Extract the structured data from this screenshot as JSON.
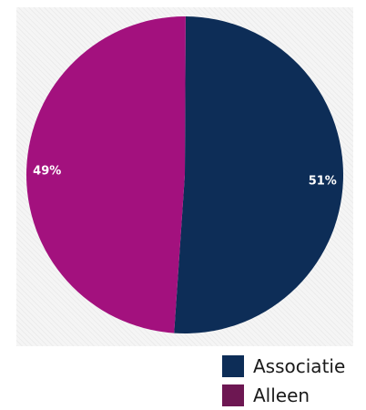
{
  "chart_data": {
    "type": "pie",
    "categories": [
      "Associatie",
      "Alleen"
    ],
    "values": [
      51,
      49
    ],
    "value_labels": [
      "51%",
      "49%"
    ],
    "colors": [
      "#0d2d57",
      "#a3117e"
    ],
    "legend_colors": [
      "#0d2d57",
      "#6d1752"
    ],
    "legend_placement": "bottom-right",
    "title": "",
    "grid": false
  },
  "legend": {
    "items": [
      {
        "label": "Associatie",
        "color": "#0d2d57"
      },
      {
        "label": "Alleen",
        "color": "#6d1752"
      }
    ]
  }
}
